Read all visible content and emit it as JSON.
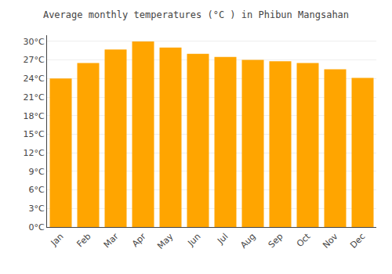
{
  "chart_data": {
    "type": "bar",
    "title": "Average monthly temperatures (°C ) in Phibun Mangsahan",
    "categories": [
      "Jan",
      "Feb",
      "Mar",
      "Apr",
      "May",
      "Jun",
      "Jul",
      "Aug",
      "Sep",
      "Oct",
      "Nov",
      "Dec"
    ],
    "values": [
      24.0,
      26.5,
      28.7,
      30.0,
      29.0,
      28.0,
      27.5,
      27.0,
      26.8,
      26.5,
      25.5,
      24.1
    ],
    "color": "#FFA500",
    "ylim": [
      0,
      31
    ],
    "yticks": [
      {
        "value": 0,
        "label": "0°C"
      },
      {
        "value": 3,
        "label": "3°C"
      },
      {
        "value": 6,
        "label": "6°C"
      },
      {
        "value": 9,
        "label": "9°C"
      },
      {
        "value": 12,
        "label": "12°C"
      },
      {
        "value": 15,
        "label": "15°C"
      },
      {
        "value": 18,
        "label": "18°C"
      },
      {
        "value": 21,
        "label": "21°C"
      },
      {
        "value": 24,
        "label": "24°C"
      },
      {
        "value": 27,
        "label": "27°C"
      },
      {
        "value": 30,
        "label": "30°C"
      }
    ],
    "grid": true
  }
}
